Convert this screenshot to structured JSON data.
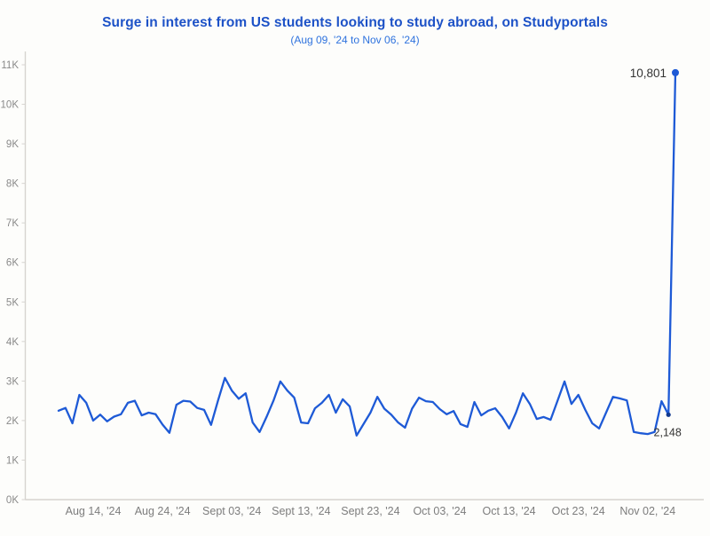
{
  "title": "Surge in interest from US students looking to study abroad, on Studyportals",
  "subtitle": "(Aug 09, '24 to Nov 06, '24)",
  "colors": {
    "title": "#1d52c7",
    "subtitle": "#2f73de",
    "line": "#1e5ad6",
    "axis": "#d6d4d0",
    "tick_label": "#8a8a8a",
    "x_label": "#7d7d7d",
    "annotation": "#333333",
    "background": "#fdfdfb",
    "end_dot": "#1e5ad6",
    "pre_spike_dot": "#123a8f"
  },
  "chart_data": {
    "type": "line",
    "title": "Surge in interest from US students looking to study abroad, on Studyportals",
    "subtitle": "(Aug 09, '24 to Nov 06, '24)",
    "date_range": {
      "start": "Aug 09, '24",
      "end": "Nov 06, '24"
    },
    "grid": false,
    "legend": false,
    "ylim": [
      0,
      11000
    ],
    "y_tick_labels": [
      "0K",
      "1K",
      "2K",
      "3K",
      "4K",
      "5K",
      "6K",
      "7K",
      "8K",
      "9K",
      "10K",
      "11K"
    ],
    "x_tick_labels": [
      {
        "label": "Aug 14, '24",
        "day": 5
      },
      {
        "label": "Aug 24, '24",
        "day": 15
      },
      {
        "label": "Sept 03, '24",
        "day": 25
      },
      {
        "label": "Sept 13, '24",
        "day": 35
      },
      {
        "label": "Sept 23, '24",
        "day": 45
      },
      {
        "label": "Oct 03, '24",
        "day": 55
      },
      {
        "label": "Oct 13, '24",
        "day": 65
      },
      {
        "label": "Oct 23, '24",
        "day": 75
      },
      {
        "label": "Nov 02, '24",
        "day": 85
      }
    ],
    "x": [
      "Aug 09",
      "Aug 10",
      "Aug 11",
      "Aug 12",
      "Aug 13",
      "Aug 14",
      "Aug 15",
      "Aug 16",
      "Aug 17",
      "Aug 18",
      "Aug 19",
      "Aug 20",
      "Aug 21",
      "Aug 22",
      "Aug 23",
      "Aug 24",
      "Aug 25",
      "Aug 26",
      "Aug 27",
      "Aug 28",
      "Aug 29",
      "Aug 30",
      "Aug 31",
      "Sep 01",
      "Sep 02",
      "Sep 03",
      "Sep 04",
      "Sep 05",
      "Sep 06",
      "Sep 07",
      "Sep 08",
      "Sep 09",
      "Sep 10",
      "Sep 11",
      "Sep 12",
      "Sep 13",
      "Sep 14",
      "Sep 15",
      "Sep 16",
      "Sep 17",
      "Sep 18",
      "Sep 19",
      "Sep 20",
      "Sep 21",
      "Sep 22",
      "Sep 23",
      "Sep 24",
      "Sep 25",
      "Sep 26",
      "Sep 27",
      "Sep 28",
      "Sep 29",
      "Sep 30",
      "Oct 01",
      "Oct 02",
      "Oct 03",
      "Oct 04",
      "Oct 05",
      "Oct 06",
      "Oct 07",
      "Oct 08",
      "Oct 09",
      "Oct 10",
      "Oct 11",
      "Oct 12",
      "Oct 13",
      "Oct 14",
      "Oct 15",
      "Oct 16",
      "Oct 17",
      "Oct 18",
      "Oct 19",
      "Oct 20",
      "Oct 21",
      "Oct 22",
      "Oct 23",
      "Oct 24",
      "Oct 25",
      "Oct 26",
      "Oct 27",
      "Oct 28",
      "Oct 29",
      "Oct 30",
      "Oct 31",
      "Nov 01",
      "Nov 02",
      "Nov 03",
      "Nov 04",
      "Nov 05",
      "Nov 06"
    ],
    "values": [
      2250,
      2320,
      1930,
      2650,
      2450,
      2000,
      2150,
      1980,
      2100,
      2160,
      2450,
      2500,
      2130,
      2200,
      2160,
      1900,
      1690,
      2400,
      2500,
      2480,
      2320,
      2270,
      1890,
      2500,
      3080,
      2760,
      2550,
      2690,
      1950,
      1710,
      2090,
      2500,
      2990,
      2760,
      2580,
      1950,
      1930,
      2310,
      2450,
      2650,
      2200,
      2540,
      2360,
      1620,
      1910,
      2200,
      2600,
      2300,
      2150,
      1950,
      1820,
      2300,
      2580,
      2490,
      2470,
      2290,
      2160,
      2240,
      1910,
      1840,
      2470,
      2130,
      2250,
      2310,
      2090,
      1800,
      2200,
      2690,
      2420,
      2040,
      2090,
      2020,
      2500,
      2990,
      2420,
      2650,
      2270,
      1930,
      1800,
      2200,
      2600,
      2560,
      2510,
      1710,
      1680,
      1660,
      1710,
      2490,
      2148,
      10801
    ],
    "annotations": [
      {
        "label": "10,801",
        "index": 89,
        "value": 10801,
        "position": "left-of-point",
        "dot": "large"
      },
      {
        "label": "2,148",
        "index": 88,
        "value": 2148,
        "position": "below-point",
        "dot": "small"
      }
    ]
  }
}
